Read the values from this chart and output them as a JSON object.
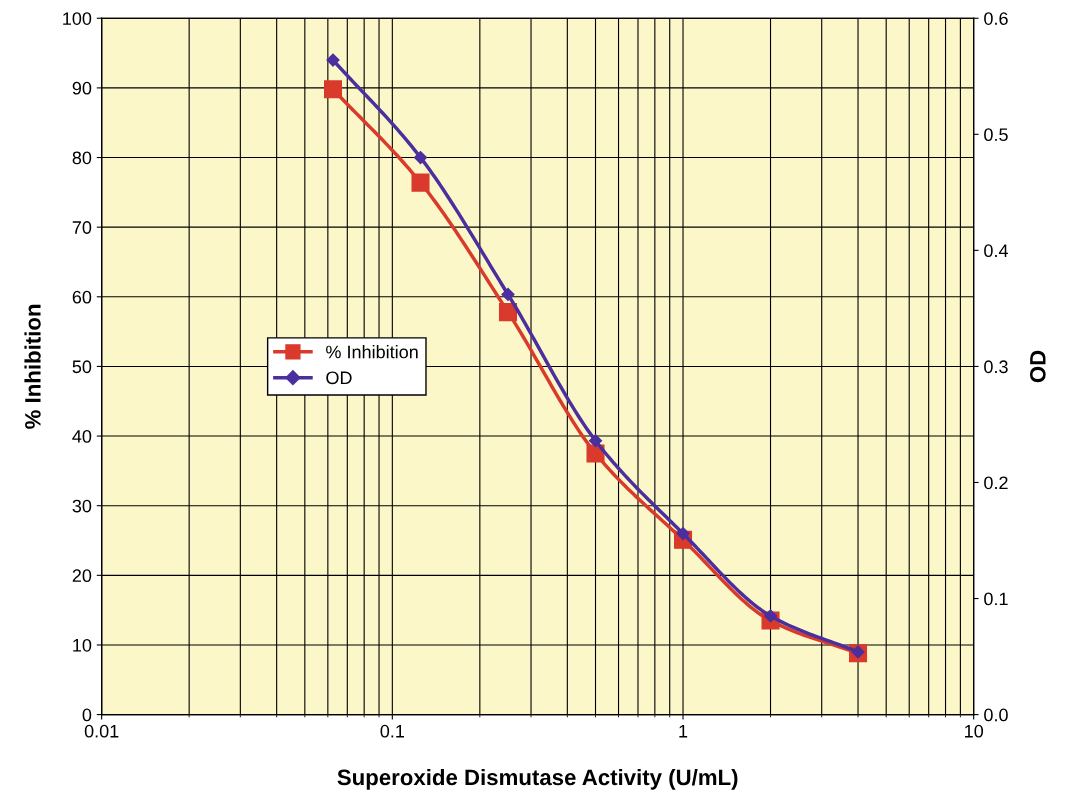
{
  "chart_data": {
    "type": "line",
    "xlabel": "Superoxide Dismutase Activity (U/mL)",
    "ylabel": "% Inhibition",
    "y2label": "OD",
    "x": [
      0.0625,
      0.125,
      0.25,
      0.5,
      1,
      2,
      4
    ],
    "series": [
      {
        "name": "% Inhibition",
        "color": "#d93a2b",
        "marker": "square",
        "values": [
          89.8,
          76.4,
          57.8,
          37.5,
          25.1,
          13.5,
          8.8
        ]
      },
      {
        "name": "OD",
        "color": "#4b2f9e",
        "marker": "diamond",
        "axis": "y2",
        "values": [
          0.564,
          0.48,
          0.362,
          0.236,
          0.156,
          0.085,
          0.054
        ]
      }
    ],
    "log": "x",
    "xlim": [
      0.01,
      10
    ],
    "xticks": [
      0.01,
      0.1,
      1,
      10
    ],
    "ylim": [
      0,
      100
    ],
    "yticks": [
      0,
      10,
      20,
      30,
      40,
      50,
      60,
      70,
      80,
      90,
      100
    ],
    "y2lim": [
      0,
      0.6
    ],
    "y2ticks": [
      {
        "value": 0,
        "label": "0.0"
      },
      0.1,
      0.2,
      0.3,
      0.4,
      0.5,
      0.6
    ],
    "grid": true,
    "legend": "left",
    "line_style": "solid"
  }
}
